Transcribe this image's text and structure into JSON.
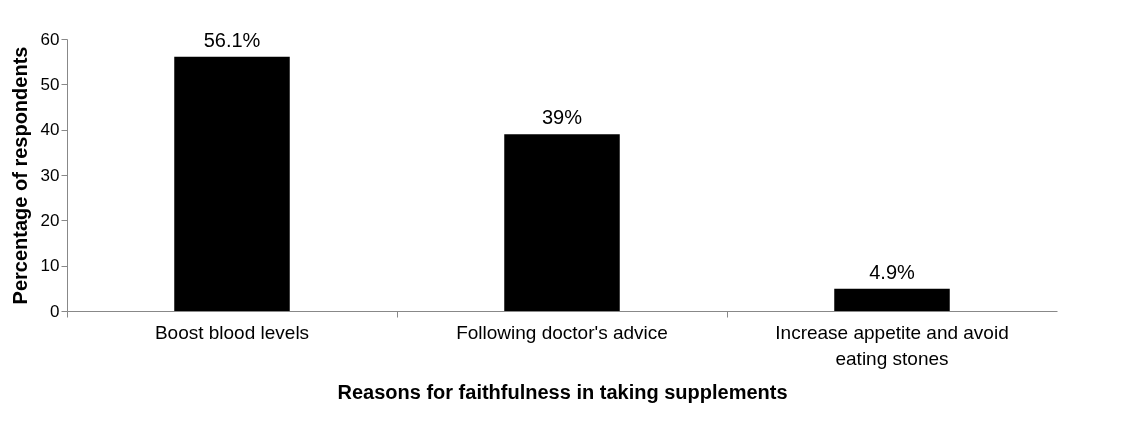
{
  "chart_data": {
    "type": "bar",
    "xlabel": "Reasons for faithfulness in taking supplements",
    "ylabel": "Percentage of respondents",
    "categories": [
      "Boost blood levels",
      "Following doctor's advice",
      "Increase appetite and avoid eating stones"
    ],
    "values": [
      56.1,
      39,
      4.9
    ],
    "value_labels": [
      "56.1%",
      "39%",
      "4.9%"
    ],
    "color": "#000000",
    "ylim": [
      0,
      60
    ],
    "yticks": [
      0,
      10,
      20,
      30,
      40,
      50,
      60
    ],
    "grid": false
  }
}
